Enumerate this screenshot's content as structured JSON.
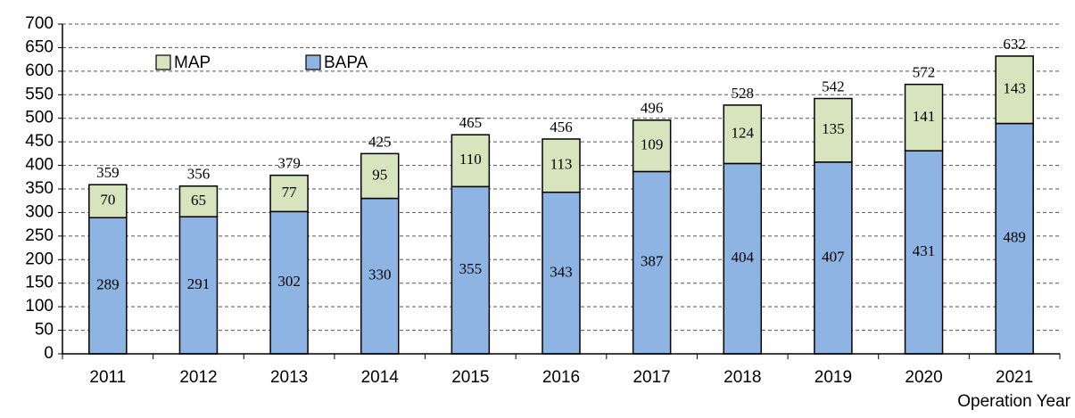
{
  "chart_data": {
    "type": "stacked_bar",
    "x_label": "Operation Year",
    "categories": [
      "2011",
      "2012",
      "2013",
      "2014",
      "2015",
      "2016",
      "2017",
      "2018",
      "2019",
      "2020",
      "2021"
    ],
    "series": [
      {
        "name": "BAPA",
        "color": "#8eb4e3",
        "values": [
          289,
          291,
          302,
          330,
          355,
          343,
          387,
          404,
          407,
          431,
          489
        ]
      },
      {
        "name": "MAP",
        "color": "#d7e4bd",
        "values": [
          70,
          65,
          77,
          95,
          110,
          113,
          109,
          124,
          135,
          141,
          143
        ]
      }
    ],
    "totals": [
      359,
      356,
      379,
      425,
      465,
      456,
      496,
      528,
      542,
      572,
      632
    ],
    "ylim": [
      0,
      700
    ],
    "yticks": [
      0,
      50,
      100,
      150,
      200,
      250,
      300,
      350,
      400,
      450,
      500,
      550,
      600,
      650,
      700
    ],
    "grid": true
  }
}
